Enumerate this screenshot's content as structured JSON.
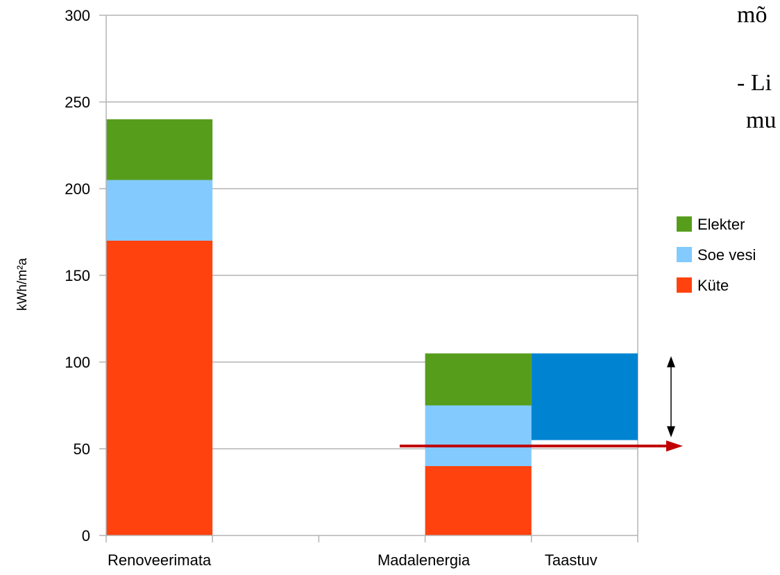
{
  "chart_data": {
    "type": "bar",
    "stacked": true,
    "ylabel": "kWh/m²a",
    "ylim": [
      0,
      300
    ],
    "yticks": [
      0,
      50,
      100,
      150,
      200,
      250,
      300
    ],
    "grid": true,
    "legend_position": "right",
    "categories": [
      "Renoveerimata",
      "Madalenergia",
      "Taastuv"
    ],
    "series": [
      {
        "name": "Küte",
        "color": "#ff420e",
        "values": [
          170,
          40,
          0
        ]
      },
      {
        "name": "Soe vesi",
        "color": "#83caff",
        "values": [
          35,
          35,
          0
        ]
      },
      {
        "name": "Elekter",
        "color": "#579d1c",
        "values": [
          35,
          30,
          0
        ]
      }
    ],
    "extra_bar": {
      "category": "Taastuv",
      "from": 55,
      "to": 105,
      "color": "#0084d1"
    },
    "annotations": {
      "red_arrow_value": 52,
      "red_arrow_color": "#c00000",
      "double_arrow_from": 55,
      "double_arrow_to": 105
    }
  },
  "overflow_text": {
    "line1": "mõ",
    "line2": "- Li",
    "line3": "mu"
  }
}
